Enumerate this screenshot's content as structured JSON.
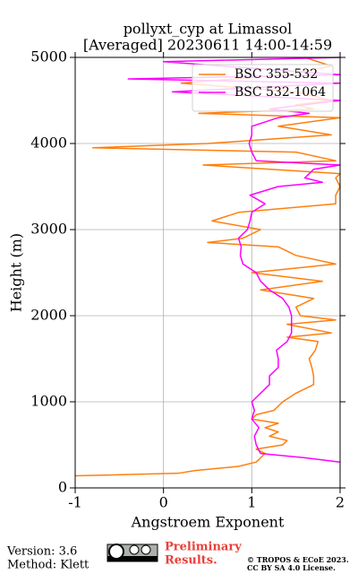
{
  "chart_data": {
    "type": "line",
    "title": "pollyxt_cyp at Limassol",
    "subtitle": "[Averaged] 20230611 14:00-14:59",
    "xlabel": "Angstroem Exponent",
    "ylabel": "Height (m)",
    "xlim": [
      -1,
      2
    ],
    "xticks": [
      -1,
      0,
      1,
      2
    ],
    "ylim": [
      0,
      5000
    ],
    "yticks": [
      0,
      1000,
      2000,
      3000,
      4000,
      5000
    ],
    "grid": true,
    "legend": "upper right",
    "series": [
      {
        "name": "BSC 355-532",
        "color": "#ff7f0e",
        "y": [
          140,
          170,
          200,
          250,
          300,
          350,
          400,
          450,
          500,
          550,
          600,
          650,
          700,
          750,
          800,
          850,
          900,
          1000,
          1100,
          1200,
          1300,
          1400,
          1500,
          1600,
          1700,
          1750,
          1800,
          1900,
          1950,
          2000,
          2100,
          2200,
          2300,
          2400,
          2500,
          2600,
          2700,
          2800,
          2850,
          2900,
          3000,
          3100,
          3200,
          3300,
          3400,
          3500,
          3600,
          3650,
          3750,
          3800,
          3900,
          3950,
          4000,
          4100,
          4200,
          4300,
          4350,
          4400,
          4450,
          4500,
          4600,
          4700,
          4800,
          4900,
          5000
        ],
        "values": [
          -1.0,
          0.17,
          0.35,
          0.85,
          1.05,
          1.1,
          1.15,
          1.05,
          1.35,
          1.4,
          1.2,
          1.3,
          1.15,
          1.3,
          1.0,
          1.05,
          1.25,
          1.35,
          1.5,
          1.7,
          1.7,
          1.68,
          1.65,
          1.72,
          1.75,
          1.4,
          1.9,
          1.4,
          1.95,
          1.55,
          1.5,
          1.7,
          1.1,
          1.8,
          1.0,
          1.95,
          1.5,
          1.3,
          0.5,
          0.9,
          1.1,
          0.55,
          0.85,
          1.95,
          1.95,
          2.0,
          1.95,
          2.0,
          0.45,
          1.95,
          1.5,
          -0.8,
          0.5,
          1.9,
          1.3,
          2.0,
          0.4,
          1.7,
          1.5,
          1.9,
          1.5,
          0.2,
          1.4,
          1.9,
          1.6
        ]
      },
      {
        "name": "BSC 532-1064",
        "color": "#ff00ff",
        "y": [
          300,
          350,
          400,
          500,
          600,
          700,
          800,
          900,
          1000,
          1100,
          1200,
          1300,
          1400,
          1500,
          1600,
          1700,
          1800,
          1900,
          2000,
          2100,
          2200,
          2300,
          2400,
          2500,
          2600,
          2700,
          2800,
          2900,
          3000,
          3100,
          3200,
          3300,
          3400,
          3500,
          3550,
          3600,
          3700,
          3750,
          3800,
          3900,
          4000,
          4100,
          4200,
          4300,
          4350,
          4400,
          4500,
          4600,
          4700,
          4750,
          4800,
          4950,
          5000
        ],
        "values": [
          2.0,
          1.6,
          1.1,
          1.05,
          1.03,
          1.08,
          1.0,
          1.03,
          1.0,
          1.1,
          1.2,
          1.2,
          1.3,
          1.3,
          1.28,
          1.4,
          1.45,
          1.45,
          1.45,
          1.42,
          1.35,
          1.2,
          1.1,
          1.05,
          0.9,
          0.87,
          0.88,
          0.85,
          0.95,
          0.98,
          1.0,
          1.15,
          0.98,
          1.3,
          1.8,
          1.6,
          1.7,
          2.0,
          1.05,
          1.0,
          0.97,
          1.0,
          1.0,
          1.3,
          1.65,
          1.2,
          2.0,
          0.1,
          2.0,
          -0.4,
          2.0,
          0.0,
          2.0
        ]
      }
    ]
  },
  "footer": {
    "version": "Version: 3.6",
    "method": "Method: Klett",
    "preliminary": [
      "Preliminary",
      "Results."
    ],
    "license": [
      "© TROPOS & ECoE 2023.",
      "CC BY SA 4.0 License."
    ]
  }
}
